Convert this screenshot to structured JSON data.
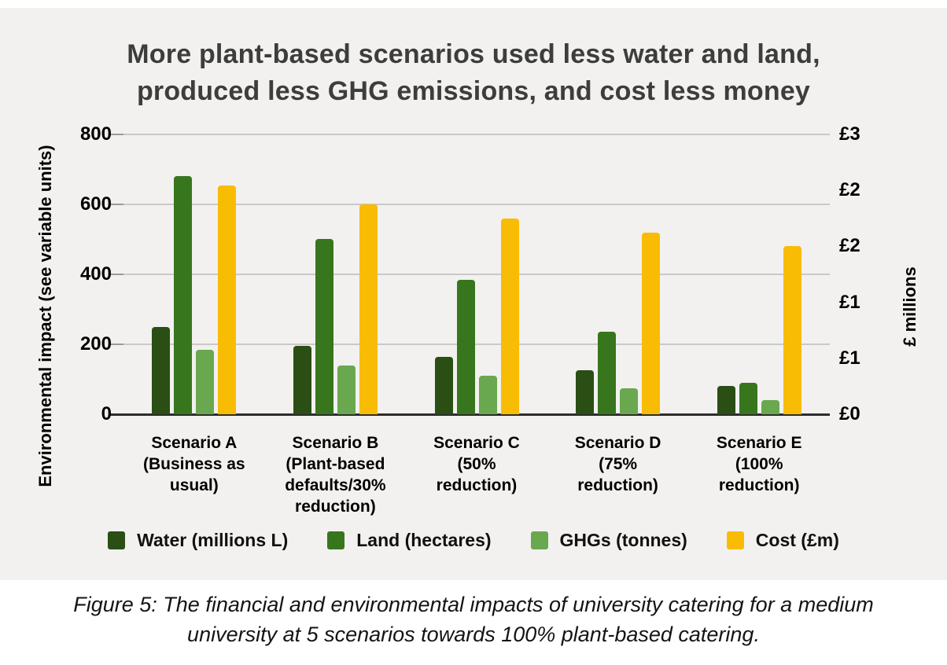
{
  "page": {
    "background": "#ffffff",
    "card_background": "#f2f1ef",
    "title_color": "#3d3d3d",
    "gridline_color": "#c9c9c9",
    "baseline_color": "#2d2d2d"
  },
  "chart_data": {
    "type": "bar",
    "title": "More plant-based scenarios used less water and land, produced less GHG emissions, and cost less money",
    "title_lines": [
      "More plant-based scenarios used less water and land,",
      "produced less GHG emissions, and cost less money"
    ],
    "categories": [
      "Scenario A (Business as usual)",
      "Scenario B (Plant-based defaults/30% reduction)",
      "Scenario C (50% reduction)",
      "Scenario D (75% reduction)",
      "Scenario E (100% reduction)"
    ],
    "category_label_lines": [
      [
        "Scenario A",
        "(Business as",
        "usual)"
      ],
      [
        "Scenario B",
        "(Plant-based",
        "defaults/30%",
        "reduction)"
      ],
      [
        "Scenario C",
        "(50%",
        "reduction)"
      ],
      [
        "Scenario D",
        "(75%",
        "reduction)"
      ],
      [
        "Scenario E",
        "(100%",
        "reduction)"
      ]
    ],
    "series": [
      {
        "name": "Water (millions L)",
        "axis": "left",
        "color": "#2a4e14",
        "values": [
          250,
          195,
          165,
          125,
          80
        ]
      },
      {
        "name": "Land (hectares)",
        "axis": "left",
        "color": "#38761d",
        "values": [
          680,
          500,
          385,
          235,
          90
        ]
      },
      {
        "name": "GHGs (tonnes)",
        "axis": "left",
        "color": "#6aa84f",
        "values": [
          185,
          140,
          110,
          75,
          40
        ]
      },
      {
        "name": "Cost (£m)",
        "axis": "right",
        "color": "#f9bc05",
        "values": [
          2.45,
          2.25,
          2.1,
          1.95,
          1.8
        ]
      }
    ],
    "left_axis": {
      "label": "Environmental impact (see variable units)",
      "min": 0,
      "max": 800,
      "ticks": [
        800,
        600,
        400,
        200,
        0
      ]
    },
    "right_axis": {
      "label": "£ millions",
      "min": 0,
      "max": 3,
      "tick_values_top_to_bottom": [
        3.0,
        2.4,
        1.8,
        1.2,
        0.6,
        0
      ],
      "tick_labels_top_to_bottom": [
        "£3",
        "£2",
        "£2",
        "£1",
        "£1",
        "£0"
      ]
    },
    "grid": true,
    "legend_position": "bottom"
  },
  "caption": {
    "text": "Figure 5: The financial and environmental impacts of university catering for a medium university at 5 scenarios towards 100% plant-based catering.",
    "lines": [
      "Figure 5: The financial and environmental impacts of university catering for a medium",
      "university at 5 scenarios towards 100% plant-based catering."
    ]
  }
}
